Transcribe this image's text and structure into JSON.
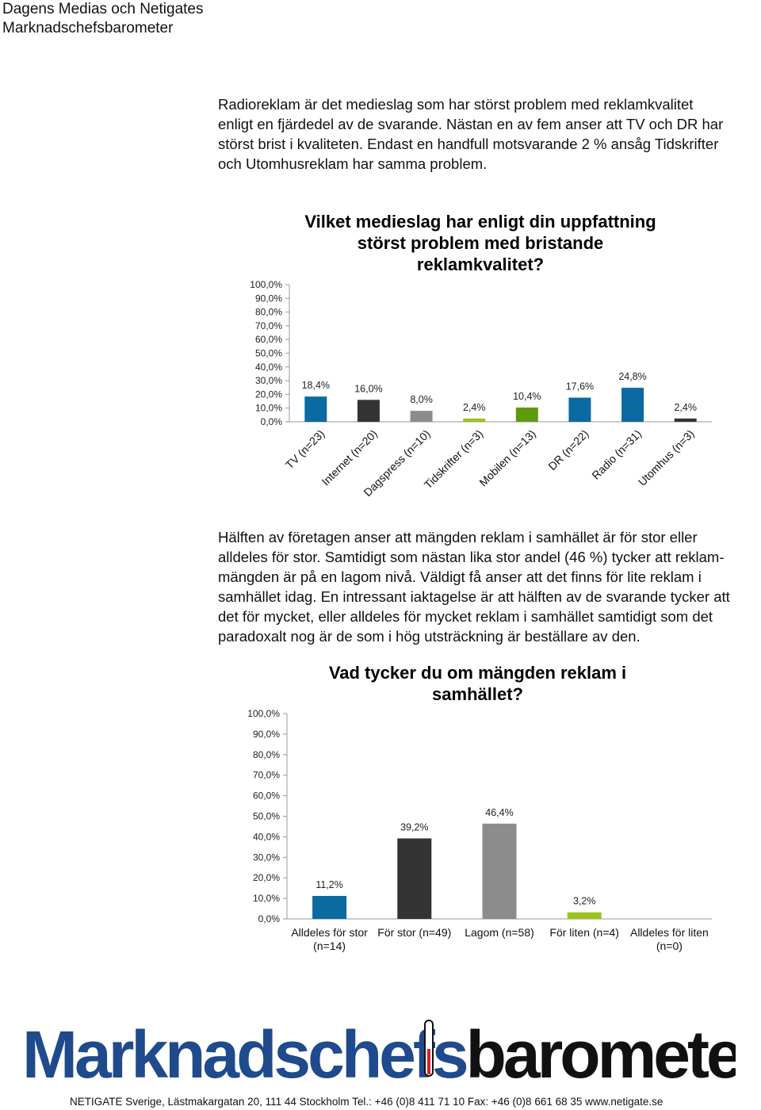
{
  "header": {
    "line1": "Dagens Medias och Netigates",
    "line2": "Marknadschefsbarometer"
  },
  "paragraph1": "Radioreklam är det medieslag som har störst problem med reklamkvalitet\nenligt en fjärdedel av de svarande. Nästan en av fem anser att TV och DR har\nstörst brist i kvaliteten. Endast en handfull motsvarande 2 % ansåg Tidskrifter\noch Utomhusreklam har samma problem.",
  "paragraph2": "Hälften av företagen anser att mängden reklam i samhället är för stor eller\nalldeles för stor. Samtidigt som nästan lika stor andel (46 %) tycker att reklam-\nmängden är på en lagom nivå. Väldigt få anser att det finns för lite reklam i\nsamhället idag. En intressant iaktagelse är att hälften av de svarande tycker att\ndet för mycket, eller alldeles för mycket reklam i samhället samtidigt som det\nparadoxalt nog är de som i hög utsträckning är beställare av den.",
  "chart_data": [
    {
      "type": "bar",
      "title": "Vilket medieslag har enligt din uppfattning\nstörst problem med bristande\nreklamkvalitet?",
      "categories": [
        "TV (n=23)",
        "Internet (n=20)",
        "Dagspress (n=10)",
        "Tidskrifter (n=3)",
        "Mobilen (n=13)",
        "DR (n=22)",
        "Radio  (n=31)",
        "Utomhus (n=3)"
      ],
      "values": [
        18.4,
        16.0,
        8.0,
        2.4,
        10.4,
        17.6,
        24.8,
        2.4
      ],
      "data_labels": [
        "18,4%",
        "16,0%",
        "8,0%",
        "2,4%",
        "10,4%",
        "17,6%",
        "24,8%",
        "2,4%"
      ],
      "colors": [
        "#0a6aa1",
        "#333333",
        "#8c8c8c",
        "#9dc21f",
        "#5e9a10",
        "#0a6aa1",
        "#0a6aa1",
        "#333333"
      ],
      "yticks": [
        "0,0%",
        "10,0%",
        "20,0%",
        "30,0%",
        "40,0%",
        "50,0%",
        "60,0%",
        "70,0%",
        "80,0%",
        "90,0%",
        "100,0%"
      ],
      "ylim": [
        0,
        100
      ],
      "grid": false
    },
    {
      "type": "bar",
      "title": "Vad tycker du om mängden reklam i\nsamhället?",
      "categories": [
        [
          "Alldeles för stor",
          "(n=14)"
        ],
        [
          "För stor (n=49)"
        ],
        [
          "Lagom (n=58)"
        ],
        [
          "För liten (n=4)"
        ],
        [
          "Alldeles för liten",
          "(n=0)"
        ]
      ],
      "values": [
        11.2,
        39.2,
        46.4,
        3.2,
        0
      ],
      "data_labels": [
        "11,2%",
        "39,2%",
        "46,4%",
        "3,2%",
        ""
      ],
      "colors": [
        "#0a6aa1",
        "#333333",
        "#8c8c8c",
        "#9dc21f",
        "#5e9a10"
      ],
      "yticks": [
        "0,0%",
        "10,0%",
        "20,0%",
        "30,0%",
        "40,0%",
        "50,0%",
        "60,0%",
        "70,0%",
        "80,0%",
        "90,0%",
        "100,0%"
      ],
      "ylim": [
        0,
        100
      ],
      "grid": false
    }
  ],
  "logo": {
    "part1": "Marknadschefs",
    "part2": "barometern",
    "color1": "#1f4a8c",
    "color2": "#111111"
  },
  "footer": "NETIGATE Sverige, Lästmakargatan 20, 111 44 Stockholm    Tel.: +46 (0)8 411 71 10    Fax: +46 (0)8 661 68 35 www.netigate.se"
}
